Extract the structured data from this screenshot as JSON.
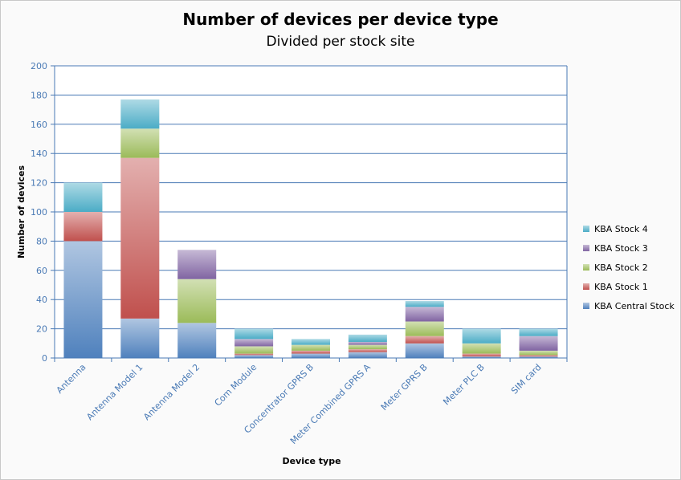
{
  "chart_data": {
    "type": "bar",
    "stacked": true,
    "title": "Number of devices per device type",
    "subtitle": "Divided per stock site",
    "xlabel": "Device type",
    "ylabel": "Number of devices",
    "ylim": [
      0,
      200
    ],
    "yticks": [
      0,
      20,
      40,
      60,
      80,
      100,
      120,
      140,
      160,
      180,
      200
    ],
    "grid": true,
    "legend_position": "right",
    "categories": [
      "Antenna",
      "Antenna Model 1",
      "Antenna Model 2",
      "Com Module",
      "Concentrator GPRS B",
      "Meter Combined GPRS A",
      "Meter GPRS B",
      "Meter PLC B",
      "SIM card"
    ],
    "series": [
      {
        "name": "KBA Central Stock",
        "color": "#4f81bd",
        "values": [
          80,
          27,
          24,
          2,
          3,
          4,
          10,
          1,
          1
        ]
      },
      {
        "name": "KBA Stock 1",
        "color": "#c0504d",
        "values": [
          20,
          110,
          0,
          1,
          2,
          2,
          5,
          2,
          1
        ]
      },
      {
        "name": "KBA Stock 2",
        "color": "#9bbb59",
        "values": [
          0,
          20,
          30,
          5,
          4,
          3,
          10,
          7,
          3
        ]
      },
      {
        "name": "KBA Stock 3",
        "color": "#8064a2",
        "values": [
          0,
          0,
          20,
          5,
          0,
          2,
          10,
          0,
          10
        ]
      },
      {
        "name": "KBA Stock 4",
        "color": "#4bacc6",
        "values": [
          20,
          20,
          0,
          7,
          4,
          5,
          4,
          10,
          5
        ]
      }
    ]
  }
}
